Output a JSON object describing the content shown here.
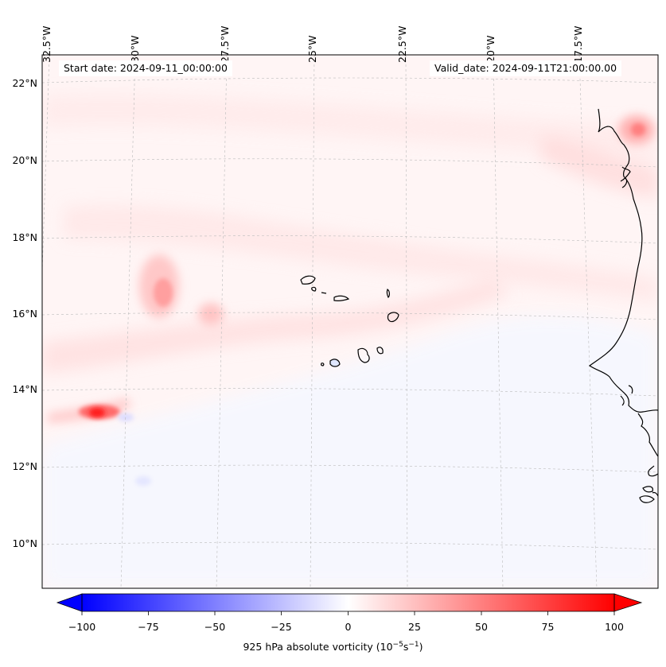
{
  "map": {
    "title_left": "Start date: 2024-09-11_00:00:00",
    "title_right": "Valid_date: 2024-09-11T21:00:00.00",
    "lon_labels": [
      "32.5°W",
      "30°W",
      "27.5°W",
      "25°W",
      "22.5°W",
      "20°W",
      "17.5°W"
    ],
    "lat_labels": [
      "22°N",
      "20°N",
      "18°N",
      "16°N",
      "14°N",
      "12°N",
      "10°N"
    ],
    "field": "925 hPa absolute vorticity",
    "colormap": "bwr"
  },
  "colorbar": {
    "ticks": [
      "−100",
      "−75",
      "−50",
      "−25",
      "0",
      "25",
      "50",
      "75",
      "100"
    ],
    "label_text": "925 hPa absolute vorticity (10",
    "label_sup1": "−5",
    "label_mid": "s",
    "label_sup2": "−1",
    "label_end": ")",
    "min": -100,
    "max": 100,
    "colors": {
      "low": "#0000ff",
      "mid": "#ffffff",
      "high": "#ff0000"
    }
  },
  "features": [
    {
      "name": "vorticity-max-west",
      "value": 100
    },
    {
      "name": "vorticity-band-16N",
      "value": 45
    },
    {
      "name": "vorticity-max-coast",
      "value": 60
    }
  ]
}
